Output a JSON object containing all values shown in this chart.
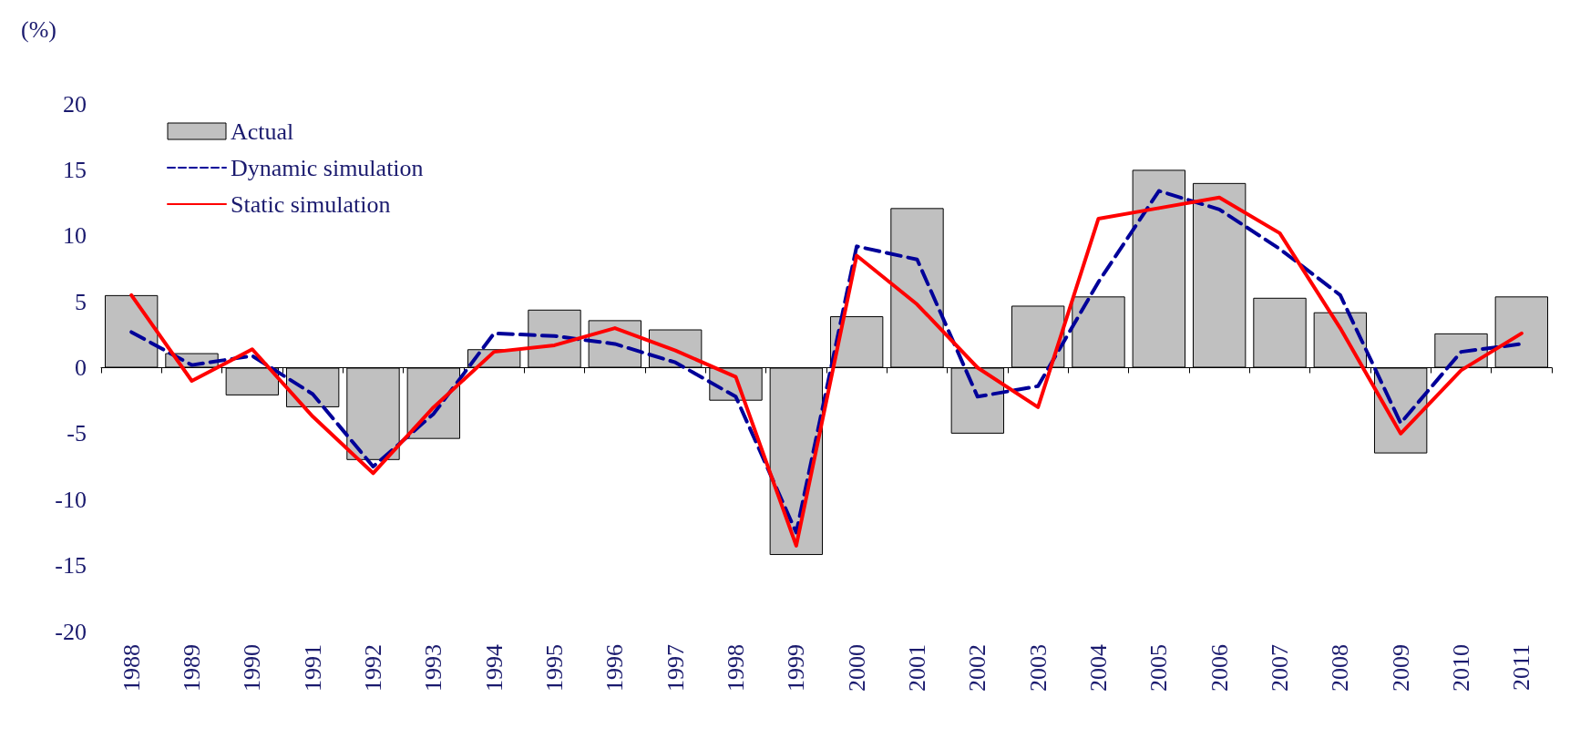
{
  "chart_data": {
    "type": "bar",
    "ylabel": "(%)",
    "categories": [
      "1988",
      "1989",
      "1990",
      "1991",
      "1992",
      "1993",
      "1994",
      "1995",
      "1996",
      "1997",
      "1998",
      "1999",
      "2000",
      "2001",
      "2002",
      "2003",
      "2004",
      "2005",
      "2006",
      "2007",
      "2008",
      "2009",
      "2010",
      "2011"
    ],
    "series": [
      {
        "name": "Actual",
        "color": "#c0c0c0",
        "values": [
          5.5,
          1.1,
          -2.1,
          -3,
          -7,
          -5.4,
          1.4,
          4.4,
          3.6,
          2.9,
          -2.5,
          -14.2,
          3.9,
          12.1,
          -5,
          4.7,
          5.4,
          15,
          14,
          5.3,
          4.2,
          -6.5,
          2.6,
          5.4
        ]
      },
      {
        "name": "Dynamic simulation",
        "type": "line",
        "line_style": "dashed",
        "color": "#000099",
        "values": [
          2.7,
          0.2,
          0.9,
          -2,
          -7.5,
          -3.5,
          2.6,
          2.4,
          1.8,
          0.4,
          -2.2,
          -12.5,
          9.2,
          8.2,
          -2.2,
          -1.4,
          6.5,
          13.4,
          12,
          9,
          5.5,
          -4.2,
          1.2,
          1.8
        ]
      },
      {
        "name": "Static simulation",
        "type": "line",
        "line_style": "solid",
        "color": "#ff0000",
        "values": [
          5.5,
          -1,
          1.4,
          -3.7,
          -8,
          -3,
          1.2,
          1.7,
          3,
          1.3,
          -0.7,
          -13.5,
          8.5,
          4.8,
          0,
          -3,
          11.3,
          12.1,
          12.9,
          10.2,
          3,
          -5,
          -0.2,
          2.6
        ]
      }
    ],
    "ylim": [
      -20,
      20
    ],
    "yticks": [
      -20,
      -15,
      -10,
      -5,
      0,
      5,
      10,
      15,
      20
    ],
    "legend": "top left",
    "marker": "none"
  }
}
